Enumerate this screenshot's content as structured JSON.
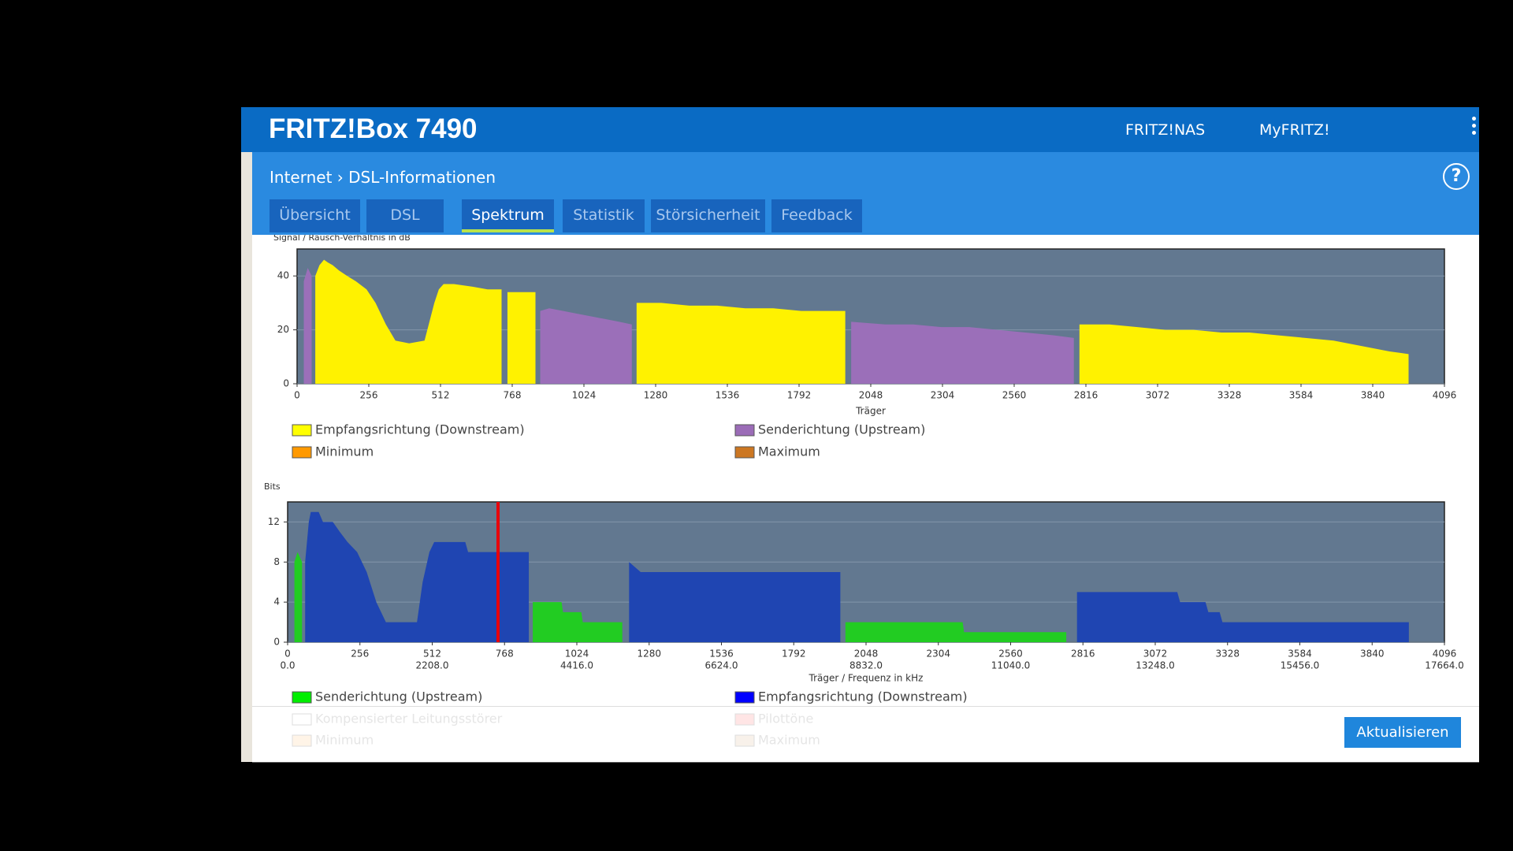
{
  "header": {
    "title": "FRITZ!Box 7490",
    "links": [
      "FRITZ!NAS",
      "MyFRITZ!"
    ]
  },
  "breadcrumb": {
    "parent": "Internet",
    "current": "DSL-Informationen",
    "help": "?"
  },
  "tabs": [
    "Übersicht",
    "DSL",
    "Spektrum",
    "Statistik",
    "Störsicherheit",
    "Feedback"
  ],
  "active_tab": 2,
  "button": "Aktualisieren",
  "chart_data": [
    {
      "type": "area",
      "y_label": "Signal / Rausch-Verhältnis in dB",
      "x_label": "Träger",
      "xlim": [
        0,
        4096
      ],
      "xticks": [
        0,
        256,
        512,
        768,
        1024,
        1280,
        1536,
        1792,
        2048,
        2304,
        2560,
        2816,
        3072,
        3328,
        3584,
        3840,
        4096
      ],
      "ylim": [
        0,
        50
      ],
      "yticks": [
        0,
        20,
        40
      ],
      "grid": true,
      "background": "#627890",
      "series": [
        {
          "name": "Empfangsrichtung (Downstream)",
          "color": "#fff200",
          "legend_color": "#ffff00",
          "x": [
            65,
            80,
            96,
            110,
            127,
            150,
            179,
            210,
            248,
            280,
            317,
            351,
            400,
            455,
            490,
            506,
            523,
            560,
            627,
            680,
            730,
            740,
            751,
            851,
            1000,
            1212,
            1300,
            1400,
            1500,
            1600,
            1700,
            1800,
            1900,
            1957,
            2300,
            2793,
            2900,
            3000,
            3100,
            3200,
            3300,
            3400,
            3500,
            3600,
            3700,
            3800,
            3900,
            3968
          ],
          "values": [
            40,
            44,
            46,
            45,
            44,
            42,
            40,
            38,
            35,
            30,
            22,
            16,
            15,
            16,
            30,
            35,
            37,
            37,
            36,
            35,
            35,
            null,
            34,
            34,
            null,
            30,
            30,
            29,
            29,
            28,
            28,
            27,
            27,
            27,
            null,
            22,
            22,
            21,
            20,
            20,
            19,
            19,
            18,
            17,
            16,
            14,
            12,
            11
          ]
        },
        {
          "name": "Senderichtung (Upstream)",
          "color": "#9b6fb9",
          "legend_color": "#9b6cb7",
          "x": [
            24,
            38,
            52,
            400,
            868,
            900,
            950,
            1000,
            1050,
            1100,
            1150,
            1195,
            1600,
            1978,
            2100,
            2200,
            2300,
            2400,
            2500,
            2600,
            2700,
            2773
          ],
          "values": [
            38,
            43,
            40,
            null,
            27,
            28,
            27,
            26,
            25,
            24,
            23,
            22,
            null,
            23,
            22,
            22,
            21,
            21,
            20,
            19,
            18,
            17
          ]
        },
        {
          "name": "Minimum",
          "color": "#ff9900",
          "legend_color": "#ff9900",
          "x": [],
          "values": []
        },
        {
          "name": "Maximum",
          "color": "#cc7722",
          "legend_color": "#cc7722",
          "x": [],
          "values": []
        }
      ]
    },
    {
      "type": "area",
      "y_label": "Bits",
      "x_label": "Träger / Frequenz in kHz",
      "xlim": [
        0,
        4096
      ],
      "xticks": [
        0,
        256,
        512,
        768,
        1024,
        1280,
        1536,
        1792,
        2048,
        2304,
        2560,
        2816,
        3072,
        3328,
        3584,
        3840,
        4096
      ],
      "x2lim": [
        0,
        17664
      ],
      "x2ticks": [
        {
          "value": 0,
          "label": "0.0"
        },
        {
          "value": 2208,
          "label": "2208.0"
        },
        {
          "value": 4416,
          "label": "4416.0"
        },
        {
          "value": 6624,
          "label": "6624.0"
        },
        {
          "value": 8832,
          "label": "8832.0"
        },
        {
          "value": 11040,
          "label": "11040.0"
        },
        {
          "value": 13248,
          "label": "13248.0"
        },
        {
          "value": 15456,
          "label": "15456.0"
        },
        {
          "value": 17664,
          "label": "17664.0"
        }
      ],
      "ylim": [
        0,
        14
      ],
      "yticks": [
        0,
        4,
        8,
        12
      ],
      "grid": true,
      "background": "#627890",
      "markers": [
        {
          "x": 745,
          "color": "#e8000b"
        }
      ],
      "series": [
        {
          "name": "Senderichtung (Upstream)",
          "color": "#22cc22",
          "legend_color": "#00ee00",
          "x": [
            24,
            35,
            51,
            400,
            868,
            970,
            975,
            1040,
            1045,
            1185,
            1600,
            1975,
            2390,
            2395,
            2757
          ],
          "values": [
            8,
            9,
            8,
            null,
            4,
            4,
            3,
            3,
            2,
            2,
            null,
            2,
            2,
            1,
            1
          ]
        },
        {
          "name": "Empfangsrichtung (Downstream)",
          "color": "#1f45b2",
          "legend_color": "#0000ff",
          "x": [
            62,
            75,
            82,
            110,
            125,
            160,
            185,
            212,
            246,
            280,
            314,
            348,
            458,
            478,
            502,
            519,
            629,
            639,
            854,
            1000,
            1209,
            1250,
            1400,
            1500,
            1600,
            1700,
            1800,
            1957,
            2300,
            2795,
            3000,
            3150,
            3160,
            3250,
            3260,
            3300,
            3310,
            3700,
            3970
          ],
          "values": [
            8,
            12,
            13,
            13,
            12,
            12,
            11,
            10,
            9,
            7,
            4,
            2,
            2,
            6,
            9,
            10,
            10,
            9,
            9,
            null,
            8,
            7,
            7,
            7,
            7,
            7,
            7,
            7,
            null,
            5,
            5,
            5,
            4,
            4,
            3,
            3,
            2,
            2,
            2
          ]
        },
        {
          "name": "Kompensierter Leitungsstörer",
          "color": "#ffffff",
          "legend_color": "#ffffff",
          "disabled": true,
          "x": [],
          "values": []
        },
        {
          "name": "Pilottöne",
          "color": "#ff8080",
          "legend_color": "#ff8080",
          "disabled": true,
          "x": [],
          "values": []
        },
        {
          "name": "Minimum",
          "color": "#ffcc88",
          "legend_color": "#ffcc88",
          "disabled": true,
          "x": [],
          "values": []
        },
        {
          "name": "Maximum",
          "color": "#ddbb99",
          "legend_color": "#ddbb99",
          "disabled": true,
          "x": [],
          "values": []
        }
      ]
    }
  ]
}
